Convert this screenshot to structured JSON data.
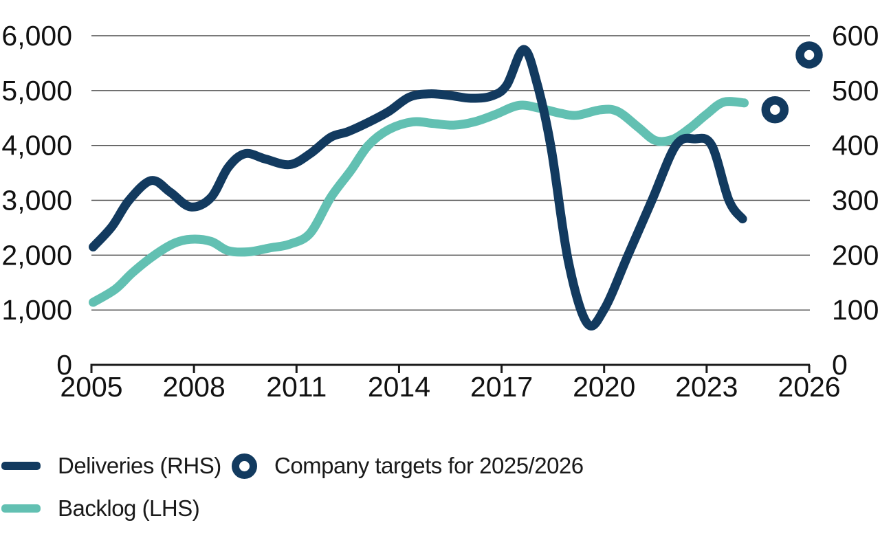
{
  "page": {
    "background": "#ffffff"
  },
  "chart_data": {
    "type": "line",
    "title": "",
    "grid": {
      "horizontal": true,
      "vertical": false
    },
    "legend_position": "bottom-left",
    "x_axis": {
      "range": [
        2005,
        2026
      ],
      "ticks": [
        2005,
        2008,
        2011,
        2014,
        2017,
        2020,
        2023,
        2026
      ],
      "tick_labels": [
        "2005",
        "2008",
        "2011",
        "2014",
        "2017",
        "2020",
        "2023",
        "2026"
      ]
    },
    "left_axis": {
      "range": [
        0,
        6000
      ],
      "tick_values": [
        0,
        1000,
        2000,
        3000,
        4000,
        5000,
        6000
      ],
      "tick_labels": [
        "0",
        "1,000",
        "2,000",
        "3,000",
        "4,000",
        "5,000",
        "6,000"
      ],
      "used_by": "Backlog (LHS)"
    },
    "right_axis": {
      "range": [
        0,
        600
      ],
      "tick_values": [
        0,
        100,
        200,
        300,
        400,
        500,
        600
      ],
      "tick_labels": [
        "0",
        "100",
        "200",
        "300",
        "400",
        "500",
        "600"
      ],
      "used_by": "Deliveries (RHS)"
    },
    "series": [
      {
        "name": "Backlog (LHS)",
        "type": "line",
        "axis": "left",
        "color": "#62c0b2",
        "points": [
          [
            2005.05,
            1140
          ],
          [
            2005.7,
            1380
          ],
          [
            2006.2,
            1680
          ],
          [
            2006.8,
            1980
          ],
          [
            2007.4,
            2210
          ],
          [
            2007.9,
            2290
          ],
          [
            2008.5,
            2250
          ],
          [
            2009.0,
            2080
          ],
          [
            2009.6,
            2060
          ],
          [
            2010.2,
            2130
          ],
          [
            2010.8,
            2200
          ],
          [
            2011.4,
            2400
          ],
          [
            2012.0,
            3050
          ],
          [
            2012.6,
            3550
          ],
          [
            2013.1,
            4000
          ],
          [
            2013.7,
            4290
          ],
          [
            2014.4,
            4430
          ],
          [
            2015.0,
            4400
          ],
          [
            2015.6,
            4370
          ],
          [
            2016.2,
            4430
          ],
          [
            2016.8,
            4560
          ],
          [
            2017.5,
            4730
          ],
          [
            2018.1,
            4680
          ],
          [
            2018.7,
            4590
          ],
          [
            2019.2,
            4550
          ],
          [
            2019.9,
            4650
          ],
          [
            2020.4,
            4620
          ],
          [
            2021.0,
            4330
          ],
          [
            2021.5,
            4090
          ],
          [
            2022.0,
            4110
          ],
          [
            2022.5,
            4310
          ],
          [
            2023.0,
            4570
          ],
          [
            2023.5,
            4790
          ],
          [
            2024.1,
            4775
          ]
        ]
      },
      {
        "name": "Deliveries (RHS)",
        "type": "line",
        "axis": "right",
        "color": "#123a5f",
        "points": [
          [
            2005.05,
            215
          ],
          [
            2005.6,
            252
          ],
          [
            2006.1,
            300
          ],
          [
            2006.75,
            336
          ],
          [
            2007.3,
            315
          ],
          [
            2007.9,
            288
          ],
          [
            2008.5,
            305
          ],
          [
            2009.0,
            360
          ],
          [
            2009.5,
            385
          ],
          [
            2010.1,
            375
          ],
          [
            2010.8,
            365
          ],
          [
            2011.4,
            385
          ],
          [
            2012.0,
            415
          ],
          [
            2012.5,
            425
          ],
          [
            2013.1,
            442
          ],
          [
            2013.7,
            462
          ],
          [
            2014.3,
            488
          ],
          [
            2014.9,
            494
          ],
          [
            2015.5,
            491
          ],
          [
            2016.1,
            486
          ],
          [
            2016.7,
            490
          ],
          [
            2017.15,
            510
          ],
          [
            2017.65,
            575
          ],
          [
            2018.05,
            510
          ],
          [
            2018.45,
            395
          ],
          [
            2018.95,
            190
          ],
          [
            2019.5,
            76
          ],
          [
            2020.0,
            101
          ],
          [
            2020.7,
            200
          ],
          [
            2021.4,
            300
          ],
          [
            2022.1,
            400
          ],
          [
            2022.65,
            412
          ],
          [
            2023.15,
            400
          ],
          [
            2023.65,
            300
          ],
          [
            2024.05,
            266
          ]
        ]
      },
      {
        "name": "Company targets for 2025/2026",
        "type": "scatter",
        "marker": "ring",
        "axis": "right",
        "color": "#123a5f",
        "points": [
          [
            2025,
            465
          ],
          [
            2026,
            565
          ]
        ]
      }
    ]
  },
  "legend": {
    "items": [
      {
        "label": "Deliveries (RHS)",
        "swatch": "line",
        "color": "#123a5f"
      },
      {
        "label": "Company targets for 2025/2026",
        "swatch": "ring",
        "color": "#123a5f"
      },
      {
        "label": "Backlog (LHS)",
        "swatch": "line",
        "color": "#62c0b2"
      }
    ]
  },
  "colors": {
    "navy": "#123a5f",
    "teal": "#62c0b2",
    "grid": "#4d4d4d",
    "axis": "#1a1a1a",
    "text": "#111111",
    "background": "#ffffff"
  }
}
